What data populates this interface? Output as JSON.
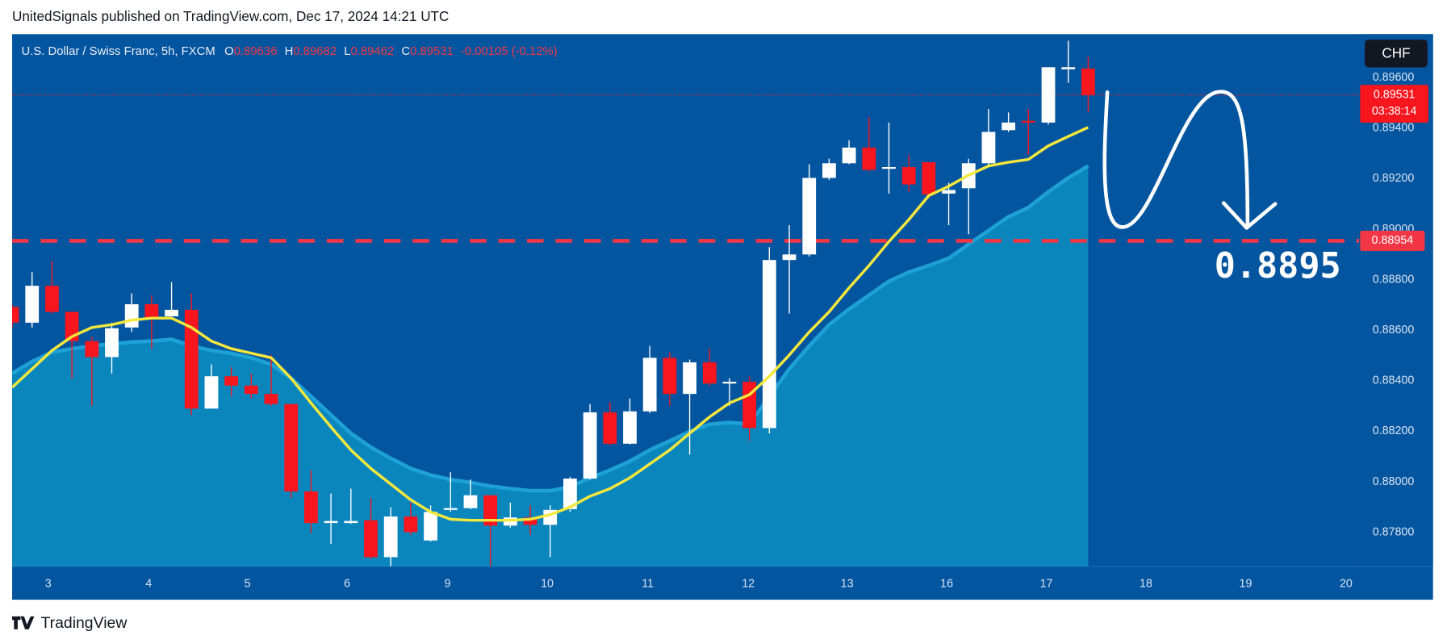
{
  "header": {
    "publisher": "UnitedSignals published on TradingView.com, Dec 17, 2024 14:21 UTC"
  },
  "chart_data": {
    "type": "candlestick",
    "title": "U.S. Dollar / Swiss Franc, 5h, FXCM",
    "legend_labels": [
      "O",
      "H",
      "L",
      "C"
    ],
    "change": "-0.00105 (-0.12%)",
    "currency": "CHF",
    "countdown": "03:38:14",
    "annotation": "0.8895",
    "up_color": "#ffffff",
    "down_color": "#f7151e",
    "x": [
      0,
      1,
      2,
      3,
      4,
      5,
      6,
      7,
      8,
      9,
      10,
      11,
      12,
      13,
      14,
      15,
      16,
      17,
      18,
      19,
      20,
      21,
      22,
      23,
      24,
      25,
      26,
      27,
      28,
      29,
      30,
      31,
      32,
      33,
      34,
      35,
      36,
      37,
      38,
      39,
      40,
      41,
      42,
      43,
      44,
      45,
      46,
      47,
      48,
      49,
      50,
      51,
      52,
      53,
      54
    ],
    "xlim": [
      0,
      67.6
    ],
    "xticks": [
      {
        "value": 1.81,
        "label": "3"
      },
      {
        "value": 6.85,
        "label": "4"
      },
      {
        "value": 11.81,
        "label": "5"
      },
      {
        "value": 16.81,
        "label": "6"
      },
      {
        "value": 21.85,
        "label": "9"
      },
      {
        "value": 26.85,
        "label": "10"
      },
      {
        "value": 31.9,
        "label": "11"
      },
      {
        "value": 36.94,
        "label": "12"
      },
      {
        "value": 41.9,
        "label": "13"
      },
      {
        "value": 46.9,
        "label": "16"
      },
      {
        "value": 51.9,
        "label": "17"
      },
      {
        "value": 56.9,
        "label": "18"
      },
      {
        "value": 61.9,
        "label": "19"
      },
      {
        "value": 66.94,
        "label": "20"
      }
    ],
    "ylim": [
      0.87665,
      0.89772
    ],
    "yticks": [
      {
        "value": 0.896,
        "label": "0.89600"
      },
      {
        "value": 0.894,
        "label": "0.89400"
      },
      {
        "value": 0.892,
        "label": "0.89200"
      },
      {
        "value": 0.89,
        "label": "0.89000"
      },
      {
        "value": 0.888,
        "label": "0.88800"
      },
      {
        "value": 0.886,
        "label": "0.88600"
      },
      {
        "value": 0.884,
        "label": "0.88400"
      },
      {
        "value": 0.882,
        "label": "0.88200"
      },
      {
        "value": 0.88,
        "label": "0.88000"
      },
      {
        "value": 0.878,
        "label": "0.87800"
      }
    ],
    "grid": false,
    "open": [
      0.88692,
      0.8863,
      0.88776,
      0.88673,
      0.88557,
      0.88494,
      0.88611,
      0.88703,
      0.88655,
      0.88681,
      0.8829,
      0.88418,
      0.88381,
      0.88348,
      0.88308,
      0.87962,
      0.87837,
      0.87837,
      0.87848,
      0.87702,
      0.87863,
      0.87768,
      0.87889,
      0.87896,
      0.87947,
      0.87827,
      0.87859,
      0.8783,
      0.87892,
      0.88013,
      0.88275,
      0.88151,
      0.88279,
      0.88491,
      0.88348,
      0.88473,
      0.88389,
      0.88396,
      0.88213,
      0.88878,
      0.889,
      0.89203,
      0.89261,
      0.89323,
      0.89239,
      0.89246,
      0.89265,
      0.89141,
      0.89162,
      0.89261,
      0.89392,
      0.89429,
      0.89422,
      0.89633,
      0.89636
    ],
    "high": [
      0.88703,
      0.8883,
      0.88874,
      0.88673,
      0.88575,
      0.8863,
      0.88746,
      0.88739,
      0.8879,
      0.88746,
      0.88465,
      0.88454,
      0.88429,
      0.88502,
      0.88308,
      0.88046,
      0.87954,
      0.87973,
      0.87936,
      0.879,
      0.87918,
      0.87907,
      0.88038,
      0.88009,
      0.87947,
      0.87918,
      0.87907,
      0.87907,
      0.8802,
      0.88308,
      0.88316,
      0.8833,
      0.88538,
      0.88513,
      0.88484,
      0.88527,
      0.8841,
      0.88418,
      0.88929,
      0.89016,
      0.89257,
      0.89279,
      0.89352,
      0.89443,
      0.89422,
      0.89294,
      0.89265,
      0.89184,
      0.89279,
      0.89476,
      0.89462,
      0.89476,
      0.89641,
      0.89746,
      0.89682
    ],
    "low": [
      0.88611,
      0.88611,
      0.88666,
      0.8841,
      0.88301,
      0.88429,
      0.88593,
      0.88527,
      0.88655,
      0.88265,
      0.8829,
      0.88338,
      0.8833,
      0.88301,
      0.87936,
      0.87797,
      0.87754,
      0.87834,
      0.87695,
      0.87666,
      0.8779,
      0.87764,
      0.87881,
      0.87892,
      0.87666,
      0.87819,
      0.8779,
      0.87702,
      0.87881,
      0.88009,
      0.88144,
      0.88148,
      0.88272,
      0.88301,
      0.88108,
      0.88381,
      0.88301,
      0.88162,
      0.88192,
      0.88666,
      0.88892,
      0.89195,
      0.89257,
      0.89228,
      0.89141,
      0.89148,
      0.89122,
      0.89016,
      0.8898,
      0.8925,
      0.89385,
      0.89294,
      0.89414,
      0.89579,
      0.89462
    ],
    "close": [
      0.8863,
      0.88776,
      0.88673,
      0.88557,
      0.88494,
      0.88608,
      0.88703,
      0.88648,
      0.88681,
      0.8829,
      0.88418,
      0.88381,
      0.88348,
      0.88308,
      0.87962,
      0.87837,
      0.87845,
      0.87845,
      0.87702,
      0.87863,
      0.87801,
      0.87881,
      0.87896,
      0.87947,
      0.87827,
      0.87859,
      0.8783,
      0.87889,
      0.88013,
      0.88275,
      0.88151,
      0.88279,
      0.88491,
      0.88348,
      0.88473,
      0.88389,
      0.88396,
      0.88213,
      0.88878,
      0.889,
      0.89203,
      0.89261,
      0.89323,
      0.89235,
      0.89246,
      0.89177,
      0.89137,
      0.89155,
      0.89261,
      0.89385,
      0.89422,
      0.89422,
      0.89641,
      0.89641,
      0.89531
    ],
    "area": {
      "color": "#0a86bd",
      "line_color": "#1ea2d6",
      "values": [
        0.88429,
        0.88476,
        0.88513,
        0.88527,
        0.88538,
        0.88546,
        0.88553,
        0.88557,
        0.88564,
        0.88538,
        0.8852,
        0.88509,
        0.88491,
        0.88465,
        0.8841,
        0.88338,
        0.88265,
        0.88192,
        0.88137,
        0.88093,
        0.88053,
        0.88027,
        0.88009,
        0.87998,
        0.87983,
        0.87973,
        0.87965,
        0.87965,
        0.8798,
        0.88016,
        0.88046,
        0.88082,
        0.88126,
        0.88162,
        0.88199,
        0.88228,
        0.88235,
        0.88228,
        0.88338,
        0.88447,
        0.88538,
        0.88622,
        0.88684,
        0.88739,
        0.88794,
        0.8883,
        0.88856,
        0.88885,
        0.8894,
        0.88995,
        0.89049,
        0.89086,
        0.89148,
        0.89203,
        0.8925
      ]
    },
    "line": {
      "color": "#f5e83c",
      "values": [
        0.88374,
        0.88447,
        0.8852,
        0.88575,
        0.88611,
        0.88622,
        0.8864,
        0.88648,
        0.88648,
        0.88611,
        0.88557,
        0.88527,
        0.88509,
        0.88491,
        0.8841,
        0.88312,
        0.88217,
        0.88126,
        0.88053,
        0.87991,
        0.87929,
        0.87881,
        0.87852,
        0.87848,
        0.87848,
        0.87848,
        0.87852,
        0.8787,
        0.879,
        0.87943,
        0.87973,
        0.88016,
        0.88071,
        0.88126,
        0.88192,
        0.88257,
        0.88312,
        0.88345,
        0.88418,
        0.88502,
        0.88593,
        0.88673,
        0.88768,
        0.88856,
        0.88951,
        0.89038,
        0.89133,
        0.8917,
        0.89214,
        0.8925,
        0.89265,
        0.89276,
        0.8933,
        0.89367,
        0.89403
      ]
    },
    "level": 0.88954,
    "level_color": "#f23645"
  },
  "footer": {
    "brand": "TradingView"
  }
}
